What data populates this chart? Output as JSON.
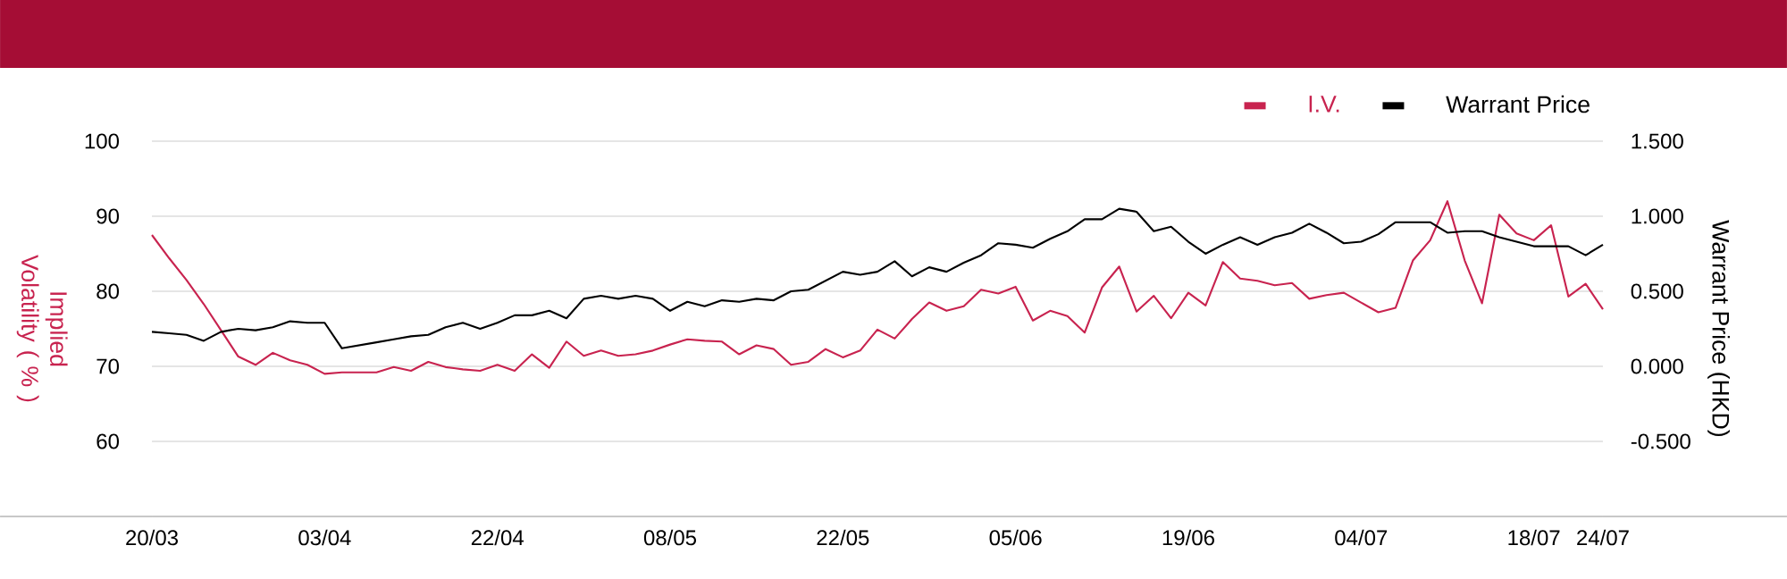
{
  "chart_data": {
    "type": "line",
    "categories": [
      "20/03",
      null,
      null,
      null,
      null,
      null,
      null,
      null,
      null,
      null,
      "03/04",
      null,
      null,
      null,
      null,
      null,
      null,
      null,
      null,
      null,
      "22/04",
      null,
      null,
      null,
      null,
      null,
      null,
      null,
      null,
      null,
      "08/05",
      null,
      null,
      null,
      null,
      null,
      null,
      null,
      null,
      null,
      "22/05",
      null,
      null,
      null,
      null,
      null,
      null,
      null,
      null,
      null,
      "05/06",
      null,
      null,
      null,
      null,
      null,
      null,
      null,
      null,
      null,
      "19/06",
      null,
      null,
      null,
      null,
      null,
      null,
      null,
      null,
      null,
      "04/07",
      null,
      null,
      null,
      null,
      null,
      null,
      null,
      null,
      null,
      "18/07",
      null,
      null,
      null,
      "24/07"
    ],
    "ylabel": "Implied Volatility ( % )",
    "y2label": "Warrant Price (HKD)",
    "ylim": [
      50,
      100
    ],
    "yticks": [
      60,
      70,
      80,
      90,
      100
    ],
    "y2lim": [
      -1,
      1.5
    ],
    "y2ticks": [
      {
        "value": -0.5,
        "label": "-0.500"
      },
      {
        "value": 0,
        "label": "0.000"
      },
      {
        "value": 0.5,
        "label": "0.500"
      },
      {
        "value": 1,
        "label": "1.000"
      },
      {
        "value": 1.5,
        "label": "1.500"
      }
    ],
    "grid": "y",
    "legend": "top right",
    "series": [
      {
        "name": "I.V.",
        "color": "#c8234f",
        "values": [
          87.5,
          84.4,
          81.5,
          78.3,
          74.8,
          71.3,
          70.2,
          71.8,
          70.8,
          70.2,
          69.0,
          69.2,
          69.2,
          69.2,
          69.9,
          69.4,
          70.6,
          69.9,
          69.6,
          69.4,
          70.2,
          69.4,
          71.6,
          69.8,
          73.3,
          71.4,
          72.1,
          71.4,
          71.6,
          72.1,
          72.9,
          73.6,
          73.4,
          73.3,
          71.6,
          72.8,
          72.3,
          70.2,
          70.6,
          72.3,
          71.2,
          72.1,
          74.9,
          73.7,
          76.3,
          78.5,
          77.4,
          78.0,
          80.2,
          79.7,
          80.6,
          76.1,
          77.4,
          76.7,
          74.5,
          80.5,
          83.3,
          77.3,
          79.4,
          76.4,
          79.8,
          78.1,
          83.9,
          81.7,
          81.4,
          80.8,
          81.1,
          79.0,
          79.5,
          79.8,
          78.5,
          77.2,
          77.8,
          84.1,
          86.8,
          92.0,
          84.1,
          78.4,
          90.2,
          87.7,
          86.8,
          88.8,
          79.3,
          81.0,
          77.6
        ]
      },
      {
        "name": "Warrant Price",
        "color": "#000000",
        "axis": "y2",
        "values": [
          0.23,
          0.22,
          0.21,
          0.17,
          0.23,
          0.25,
          0.24,
          0.26,
          0.3,
          0.29,
          0.29,
          0.12,
          0.14,
          0.16,
          0.18,
          0.2,
          0.21,
          0.26,
          0.29,
          0.25,
          0.29,
          0.34,
          0.34,
          0.37,
          0.32,
          0.45,
          0.47,
          0.45,
          0.47,
          0.45,
          0.37,
          0.43,
          0.4,
          0.44,
          0.43,
          0.45,
          0.44,
          0.5,
          0.51,
          0.57,
          0.63,
          0.61,
          0.63,
          0.7,
          0.6,
          0.66,
          0.63,
          0.69,
          0.74,
          0.82,
          0.81,
          0.79,
          0.85,
          0.9,
          0.98,
          0.98,
          1.05,
          1.03,
          0.9,
          0.93,
          0.83,
          0.75,
          0.81,
          0.86,
          0.81,
          0.86,
          0.89,
          0.95,
          0.89,
          0.82,
          0.83,
          0.88,
          0.96,
          0.96,
          0.96,
          0.89,
          0.9,
          0.9,
          0.86,
          0.83,
          0.8,
          0.8,
          0.8,
          0.74,
          0.81
        ]
      }
    ]
  }
}
